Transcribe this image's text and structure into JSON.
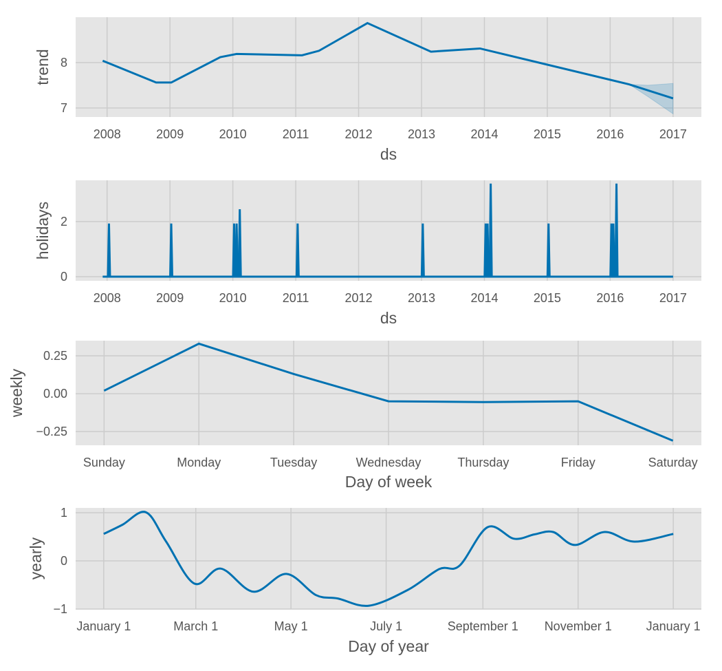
{
  "colors": {
    "line": "#0072B2",
    "band": "#0072B2",
    "panel_bg": "#E5E5E5",
    "grid": "#CCCCCC",
    "text": "#555555"
  },
  "chart_data": [
    {
      "type": "line",
      "title": "",
      "xlabel": "ds",
      "ylabel": "trend",
      "xlim": [
        2007.5,
        2017.45
      ],
      "ylim": [
        6.8,
        9.0
      ],
      "x_ticks": [
        2008,
        2009,
        2010,
        2011,
        2012,
        2013,
        2014,
        2015,
        2016,
        2017
      ],
      "x_tick_labels": [
        "2008",
        "2009",
        "2010",
        "2011",
        "2012",
        "2013",
        "2014",
        "2015",
        "2016",
        "2017"
      ],
      "y_ticks": [
        7,
        8
      ],
      "y_tick_labels": [
        "7",
        "8"
      ],
      "grid": true,
      "x": [
        2007.93,
        2008.78,
        2009.02,
        2009.8,
        2010.06,
        2011.1,
        2011.37,
        2012.14,
        2013.15,
        2013.93,
        2016.3,
        2017.0
      ],
      "y": [
        8.04,
        7.56,
        7.56,
        8.12,
        8.19,
        8.16,
        8.26,
        8.87,
        8.24,
        8.31,
        7.52,
        7.21
      ],
      "uncertainty": {
        "x": [
          2016.3,
          2016.6,
          2017.0
        ],
        "upper": [
          7.52,
          7.5,
          7.54
        ],
        "lower": [
          7.52,
          7.25,
          6.87
        ]
      }
    },
    {
      "type": "line",
      "xlabel": "ds",
      "ylabel": "holidays",
      "xlim": [
        2007.5,
        2017.45
      ],
      "ylim": [
        -0.15,
        3.5
      ],
      "x_ticks": [
        2008,
        2009,
        2010,
        2011,
        2012,
        2013,
        2014,
        2015,
        2016,
        2017
      ],
      "x_tick_labels": [
        "2008",
        "2009",
        "2010",
        "2011",
        "2012",
        "2013",
        "2014",
        "2015",
        "2016",
        "2017"
      ],
      "y_ticks": [
        0,
        2
      ],
      "y_tick_labels": [
        "0",
        "2"
      ],
      "grid": true,
      "range": [
        2007.93,
        2017.0
      ],
      "spikes": [
        {
          "x": 2008.03,
          "y": 1.93
        },
        {
          "x": 2009.02,
          "y": 1.93
        },
        {
          "x": 2010.02,
          "y": 1.93
        },
        {
          "x": 2010.06,
          "y": 1.93
        },
        {
          "x": 2010.11,
          "y": 2.45
        },
        {
          "x": 2011.03,
          "y": 1.93
        },
        {
          "x": 2013.02,
          "y": 1.93
        },
        {
          "x": 2014.02,
          "y": 1.93
        },
        {
          "x": 2014.05,
          "y": 1.93
        },
        {
          "x": 2014.1,
          "y": 3.38
        },
        {
          "x": 2015.02,
          "y": 1.93
        },
        {
          "x": 2016.02,
          "y": 1.93
        },
        {
          "x": 2016.05,
          "y": 1.93
        },
        {
          "x": 2016.1,
          "y": 3.38
        }
      ]
    },
    {
      "type": "line",
      "xlabel": "Day of week",
      "ylabel": "weekly",
      "xlim": [
        -0.3,
        6.3
      ],
      "ylim": [
        -0.34,
        0.35
      ],
      "categories": [
        "Sunday",
        "Monday",
        "Tuesday",
        "Wednesday",
        "Thursday",
        "Friday",
        "Saturday"
      ],
      "y_ticks": [
        -0.25,
        0,
        0.25
      ],
      "y_tick_labels": [
        "−0.25",
        "0.00",
        "0.25"
      ],
      "grid": true,
      "values": [
        0.02,
        0.33,
        0.13,
        -0.05,
        -0.055,
        -0.05,
        -0.31
      ]
    },
    {
      "type": "line",
      "xlabel": "Day of year",
      "ylabel": "yearly",
      "xlim": [
        -18,
        383
      ],
      "ylim": [
        -1.0,
        1.1
      ],
      "x_ticks": [
        0,
        59,
        120,
        181,
        243,
        304,
        365
      ],
      "x_tick_labels": [
        "January 1",
        "March 1",
        "May 1",
        "July 1",
        "September 1",
        "November 1",
        "January 1"
      ],
      "y_ticks": [
        -1,
        0,
        1
      ],
      "y_tick_labels": [
        "−1",
        "0",
        "1"
      ],
      "grid": true,
      "x": [
        0,
        12,
        27,
        40,
        58,
        75,
        96,
        117,
        136,
        150,
        170,
        195,
        215,
        228,
        246,
        263,
        276,
        288,
        302,
        321,
        340,
        365
      ],
      "y": [
        0.56,
        0.75,
        1.01,
        0.4,
        -0.47,
        -0.16,
        -0.64,
        -0.27,
        -0.71,
        -0.78,
        -0.93,
        -0.6,
        -0.17,
        -0.1,
        0.7,
        0.46,
        0.55,
        0.6,
        0.33,
        0.6,
        0.4,
        0.56
      ]
    }
  ]
}
